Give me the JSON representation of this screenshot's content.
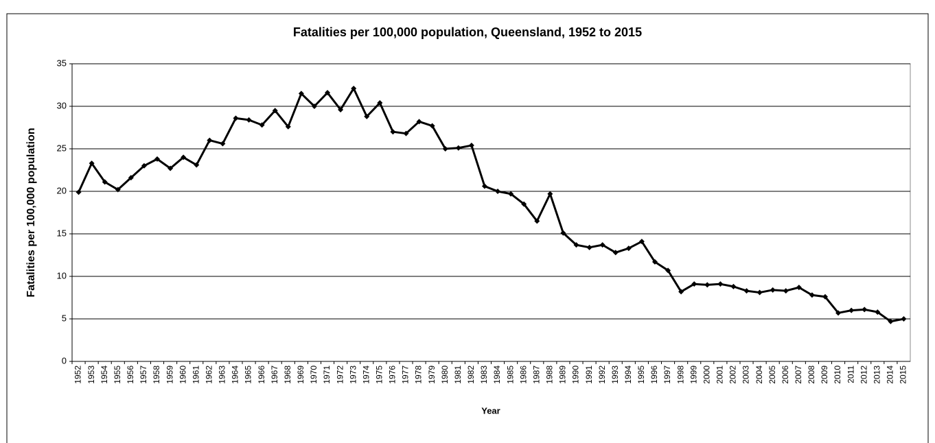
{
  "chart_data": {
    "type": "line",
    "title": "Fatalities per 100,000 population, Queensland, 1952 to 2015",
    "x_label": "Year",
    "y_label": "Fatalities per 100,000 population",
    "categories": [
      "1952",
      "1953",
      "1954",
      "1955",
      "1956",
      "1957",
      "1958",
      "1959",
      "1960",
      "1961",
      "1962",
      "1963",
      "1964",
      "1965",
      "1966",
      "1967",
      "1968",
      "1969",
      "1970",
      "1971",
      "1972",
      "1973",
      "1974",
      "1975",
      "1976",
      "1977",
      "1978",
      "1979",
      "1980",
      "1981",
      "1982",
      "1983",
      "1984",
      "1985",
      "1986",
      "1987",
      "1988",
      "1989",
      "1990",
      "1991",
      "1992",
      "1993",
      "1994",
      "1995",
      "1996",
      "1997",
      "1998",
      "1999",
      "2000",
      "2001",
      "2002",
      "2003",
      "2004",
      "2005",
      "2006",
      "2007",
      "2008",
      "2009",
      "2010",
      "2011",
      "2012",
      "2013",
      "2014",
      "2015"
    ],
    "values": [
      19.9,
      23.3,
      21.1,
      20.2,
      21.6,
      23.0,
      23.8,
      22.7,
      24.0,
      23.1,
      26.0,
      25.6,
      28.6,
      28.4,
      27.8,
      29.5,
      27.6,
      31.5,
      30.0,
      31.6,
      29.6,
      32.1,
      28.8,
      30.4,
      27.0,
      26.8,
      28.2,
      27.7,
      25.0,
      25.1,
      25.4,
      20.6,
      20.0,
      19.7,
      18.5,
      16.5,
      19.7,
      15.1,
      13.7,
      13.4,
      13.7,
      12.8,
      13.3,
      14.1,
      11.7,
      10.7,
      8.2,
      9.1,
      9.0,
      9.1,
      8.8,
      8.3,
      8.1,
      8.4,
      8.3,
      8.7,
      7.8,
      7.6,
      5.7,
      6.0,
      6.1,
      5.8,
      4.7,
      5.0
    ],
    "color": "#000000",
    "ylim": [
      0,
      35
    ],
    "yticks": [
      0,
      5,
      10,
      15,
      20,
      25,
      30,
      35
    ],
    "grid": true
  }
}
